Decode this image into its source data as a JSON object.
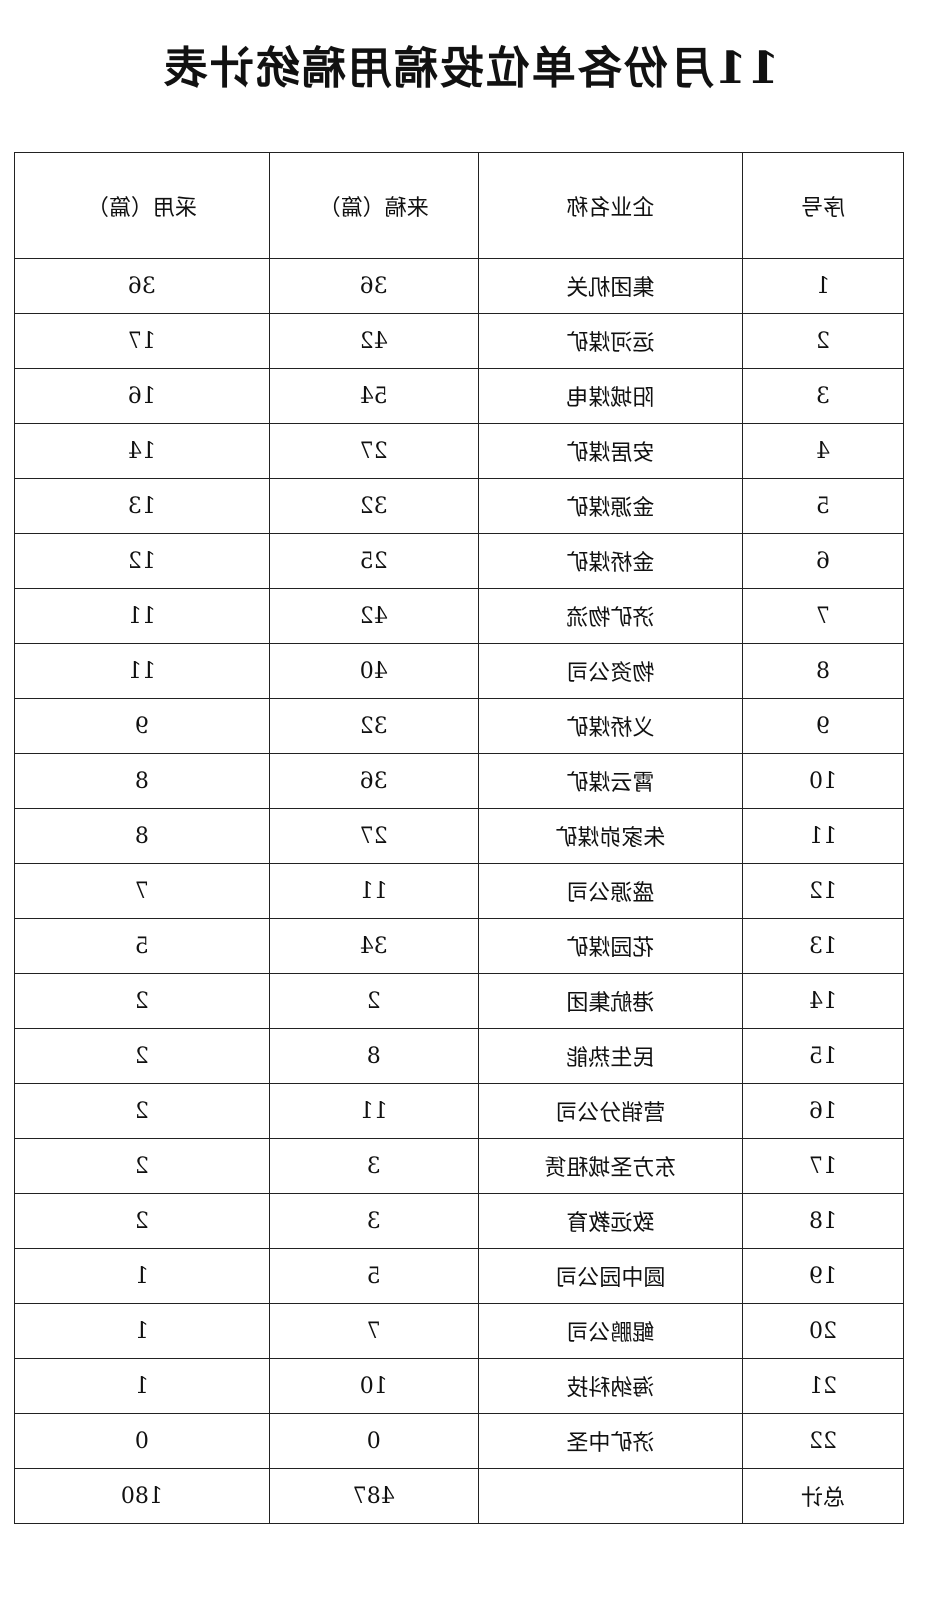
{
  "title": "11月份各单位投稿用稿统计表",
  "headers": [
    "序号",
    "企业名称",
    "来稿（篇）",
    "采用（篇）"
  ],
  "rows": [
    [
      "1",
      "集团机关",
      "36",
      "36"
    ],
    [
      "2",
      "运河煤矿",
      "42",
      "17"
    ],
    [
      "3",
      "阳城煤电",
      "54",
      "16"
    ],
    [
      "4",
      "安居煤矿",
      "27",
      "14"
    ],
    [
      "5",
      "金源煤矿",
      "32",
      "13"
    ],
    [
      "6",
      "金桥煤矿",
      "25",
      "12"
    ],
    [
      "7",
      "济矿物流",
      "42",
      "11"
    ],
    [
      "8",
      "物资公司",
      "40",
      "11"
    ],
    [
      "9",
      "义桥煤矿",
      "32",
      "9"
    ],
    [
      "10",
      "霄云煤矿",
      "36",
      "8"
    ],
    [
      "11",
      "朱家峁煤矿",
      "27",
      "8"
    ],
    [
      "12",
      "盛源公司",
      "11",
      "7"
    ],
    [
      "13",
      "花园煤矿",
      "34",
      "5"
    ],
    [
      "14",
      "港航集团",
      "2",
      "2"
    ],
    [
      "15",
      "民生热能",
      "8",
      "2"
    ],
    [
      "16",
      "营销分公司",
      "11",
      "2"
    ],
    [
      "17",
      "东方圣城租赁",
      "3",
      "2"
    ],
    [
      "18",
      "致远教育",
      "3",
      "2"
    ],
    [
      "19",
      "圆中园公司",
      "5",
      "1"
    ],
    [
      "20",
      "鲲鹏公司",
      "7",
      "1"
    ],
    [
      "21",
      "海纳科技",
      "10",
      "1"
    ],
    [
      "22",
      "济矿中圣",
      "0",
      "0"
    ]
  ],
  "total": {
    "label": "总计",
    "name": "",
    "submitted": "487",
    "adopted": "180"
  }
}
